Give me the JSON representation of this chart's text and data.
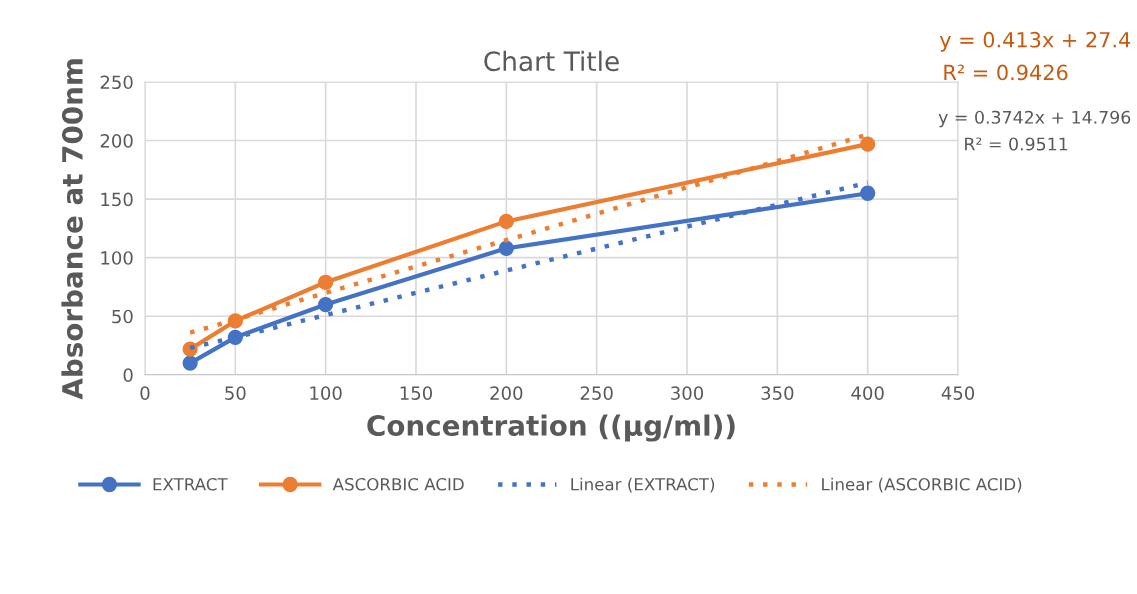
{
  "chart_data": {
    "type": "line",
    "title": "Chart Title",
    "xlabel": "Concentration ((µg/ml))",
    "ylabel": "Absorbance at 700nm",
    "x": [
      25,
      50,
      100,
      200,
      400
    ],
    "series": [
      {
        "name": "EXTRACT",
        "color": "#4472c4",
        "values": [
          10,
          32,
          60,
          108,
          155
        ],
        "marker": "circle",
        "line_style": "solid"
      },
      {
        "name": "ASCORBIC ACID",
        "color": "#ed7d31",
        "values": [
          22,
          46,
          79,
          131,
          197
        ],
        "marker": "circle",
        "line_style": "solid"
      },
      {
        "name": "Linear (EXTRACT)",
        "color": "#4472c4",
        "values": [
          23,
          32,
          51,
          89,
          164
        ],
        "marker": "none",
        "line_style": "dotted"
      },
      {
        "name": "Linear (ASCORBIC ACID)",
        "color": "#ed7d31",
        "values": [
          36,
          47,
          70,
          115,
          205
        ],
        "marker": "none",
        "line_style": "dotted"
      }
    ],
    "annotations": [
      "y = 0.413x + 27.4",
      "R² = 0.9426",
      "y = 0.3742x + 14.796",
      "R² = 0.9511"
    ],
    "xlim": [
      0,
      450
    ],
    "xticks": [
      0,
      50,
      100,
      150,
      200,
      250,
      300,
      350,
      400,
      450
    ],
    "ylim": [
      0,
      250
    ],
    "yticks": [
      0,
      50,
      100,
      150,
      200,
      250
    ],
    "grid": true,
    "legend": "bottom"
  }
}
